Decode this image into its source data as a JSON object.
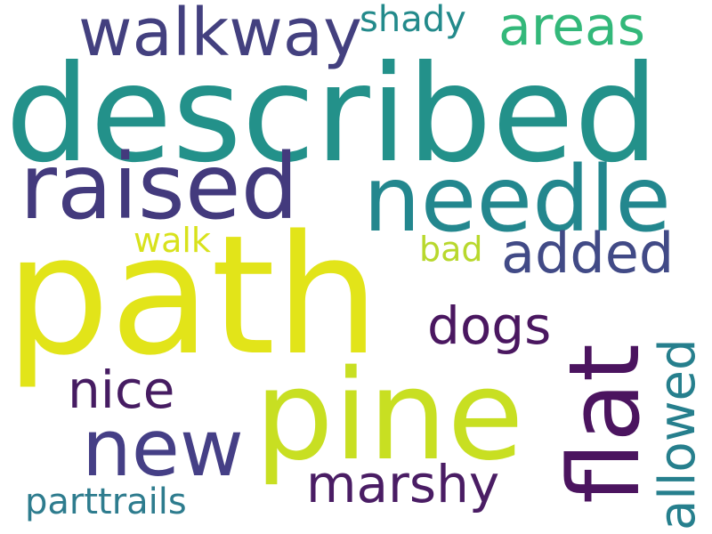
{
  "wordcloud": {
    "words": {
      "described": {
        "text": "described",
        "color": "#23918a"
      },
      "path": {
        "text": "path",
        "color": "#e2e419"
      },
      "pine": {
        "text": "pine",
        "color": "#c8df22"
      },
      "needle": {
        "text": "needle",
        "color": "#23878e"
      },
      "raised": {
        "text": "raised",
        "color": "#433a7d"
      },
      "walkway": {
        "text": "walkway",
        "color": "#43407f"
      },
      "new": {
        "text": "new",
        "color": "#453f86"
      },
      "flat": {
        "text": "flat",
        "color": "#4b145f"
      },
      "areas": {
        "text": "areas",
        "color": "#33b87a"
      },
      "added": {
        "text": "added",
        "color": "#414a86"
      },
      "dogs": {
        "text": "dogs",
        "color": "#4a1760"
      },
      "allowed": {
        "text": "allowed",
        "color": "#267f8d"
      },
      "marshy": {
        "text": "marshy",
        "color": "#4a1d64"
      },
      "nice": {
        "text": "nice",
        "color": "#461c62"
      },
      "shady": {
        "text": "shady",
        "color": "#238a8b"
      },
      "walk": {
        "text": "walk",
        "color": "#d8e21c"
      },
      "bad": {
        "text": "bad",
        "color": "#b8d82d"
      },
      "parttrails": {
        "text": "parttrails",
        "color": "#2e7c8e"
      }
    }
  }
}
